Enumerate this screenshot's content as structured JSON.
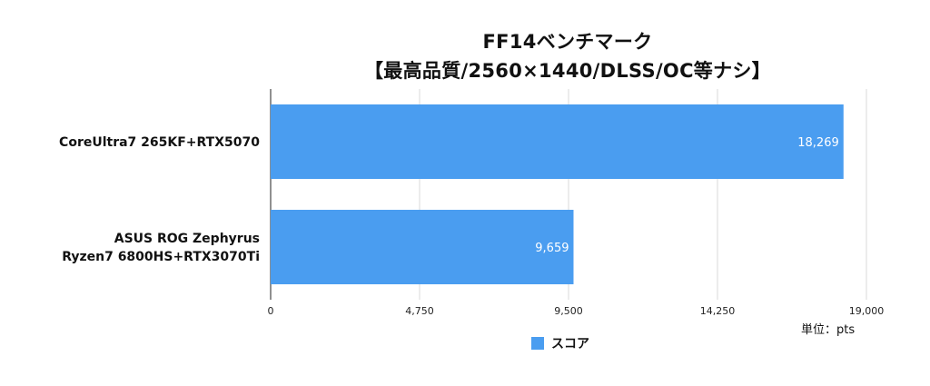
{
  "chart_data": {
    "type": "bar",
    "orientation": "horizontal",
    "title": "FF14ベンチマーク",
    "subtitle": "【最高品質/2560×1440/DLSS/OC等ナシ】",
    "categories": [
      [
        "CoreUltra7 265KF+RTX5070"
      ],
      [
        "ASUS ROG Zephyrus",
        "Ryzen7 6800HS+RTX3070Ti"
      ]
    ],
    "series": [
      {
        "name": "スコア",
        "values": [
          18269,
          9659
        ],
        "labels": [
          "18,269",
          "9,659"
        ],
        "color": "#4a9df0"
      }
    ],
    "xlim": [
      0,
      19000
    ],
    "xticks": [
      0,
      4750,
      9500,
      14250,
      19000
    ],
    "xtick_labels": [
      "0",
      "4,750",
      "9,500",
      "14,250",
      "19,000"
    ],
    "unit_label": "単位：pts",
    "grid": true,
    "legend_position": "bottom"
  }
}
